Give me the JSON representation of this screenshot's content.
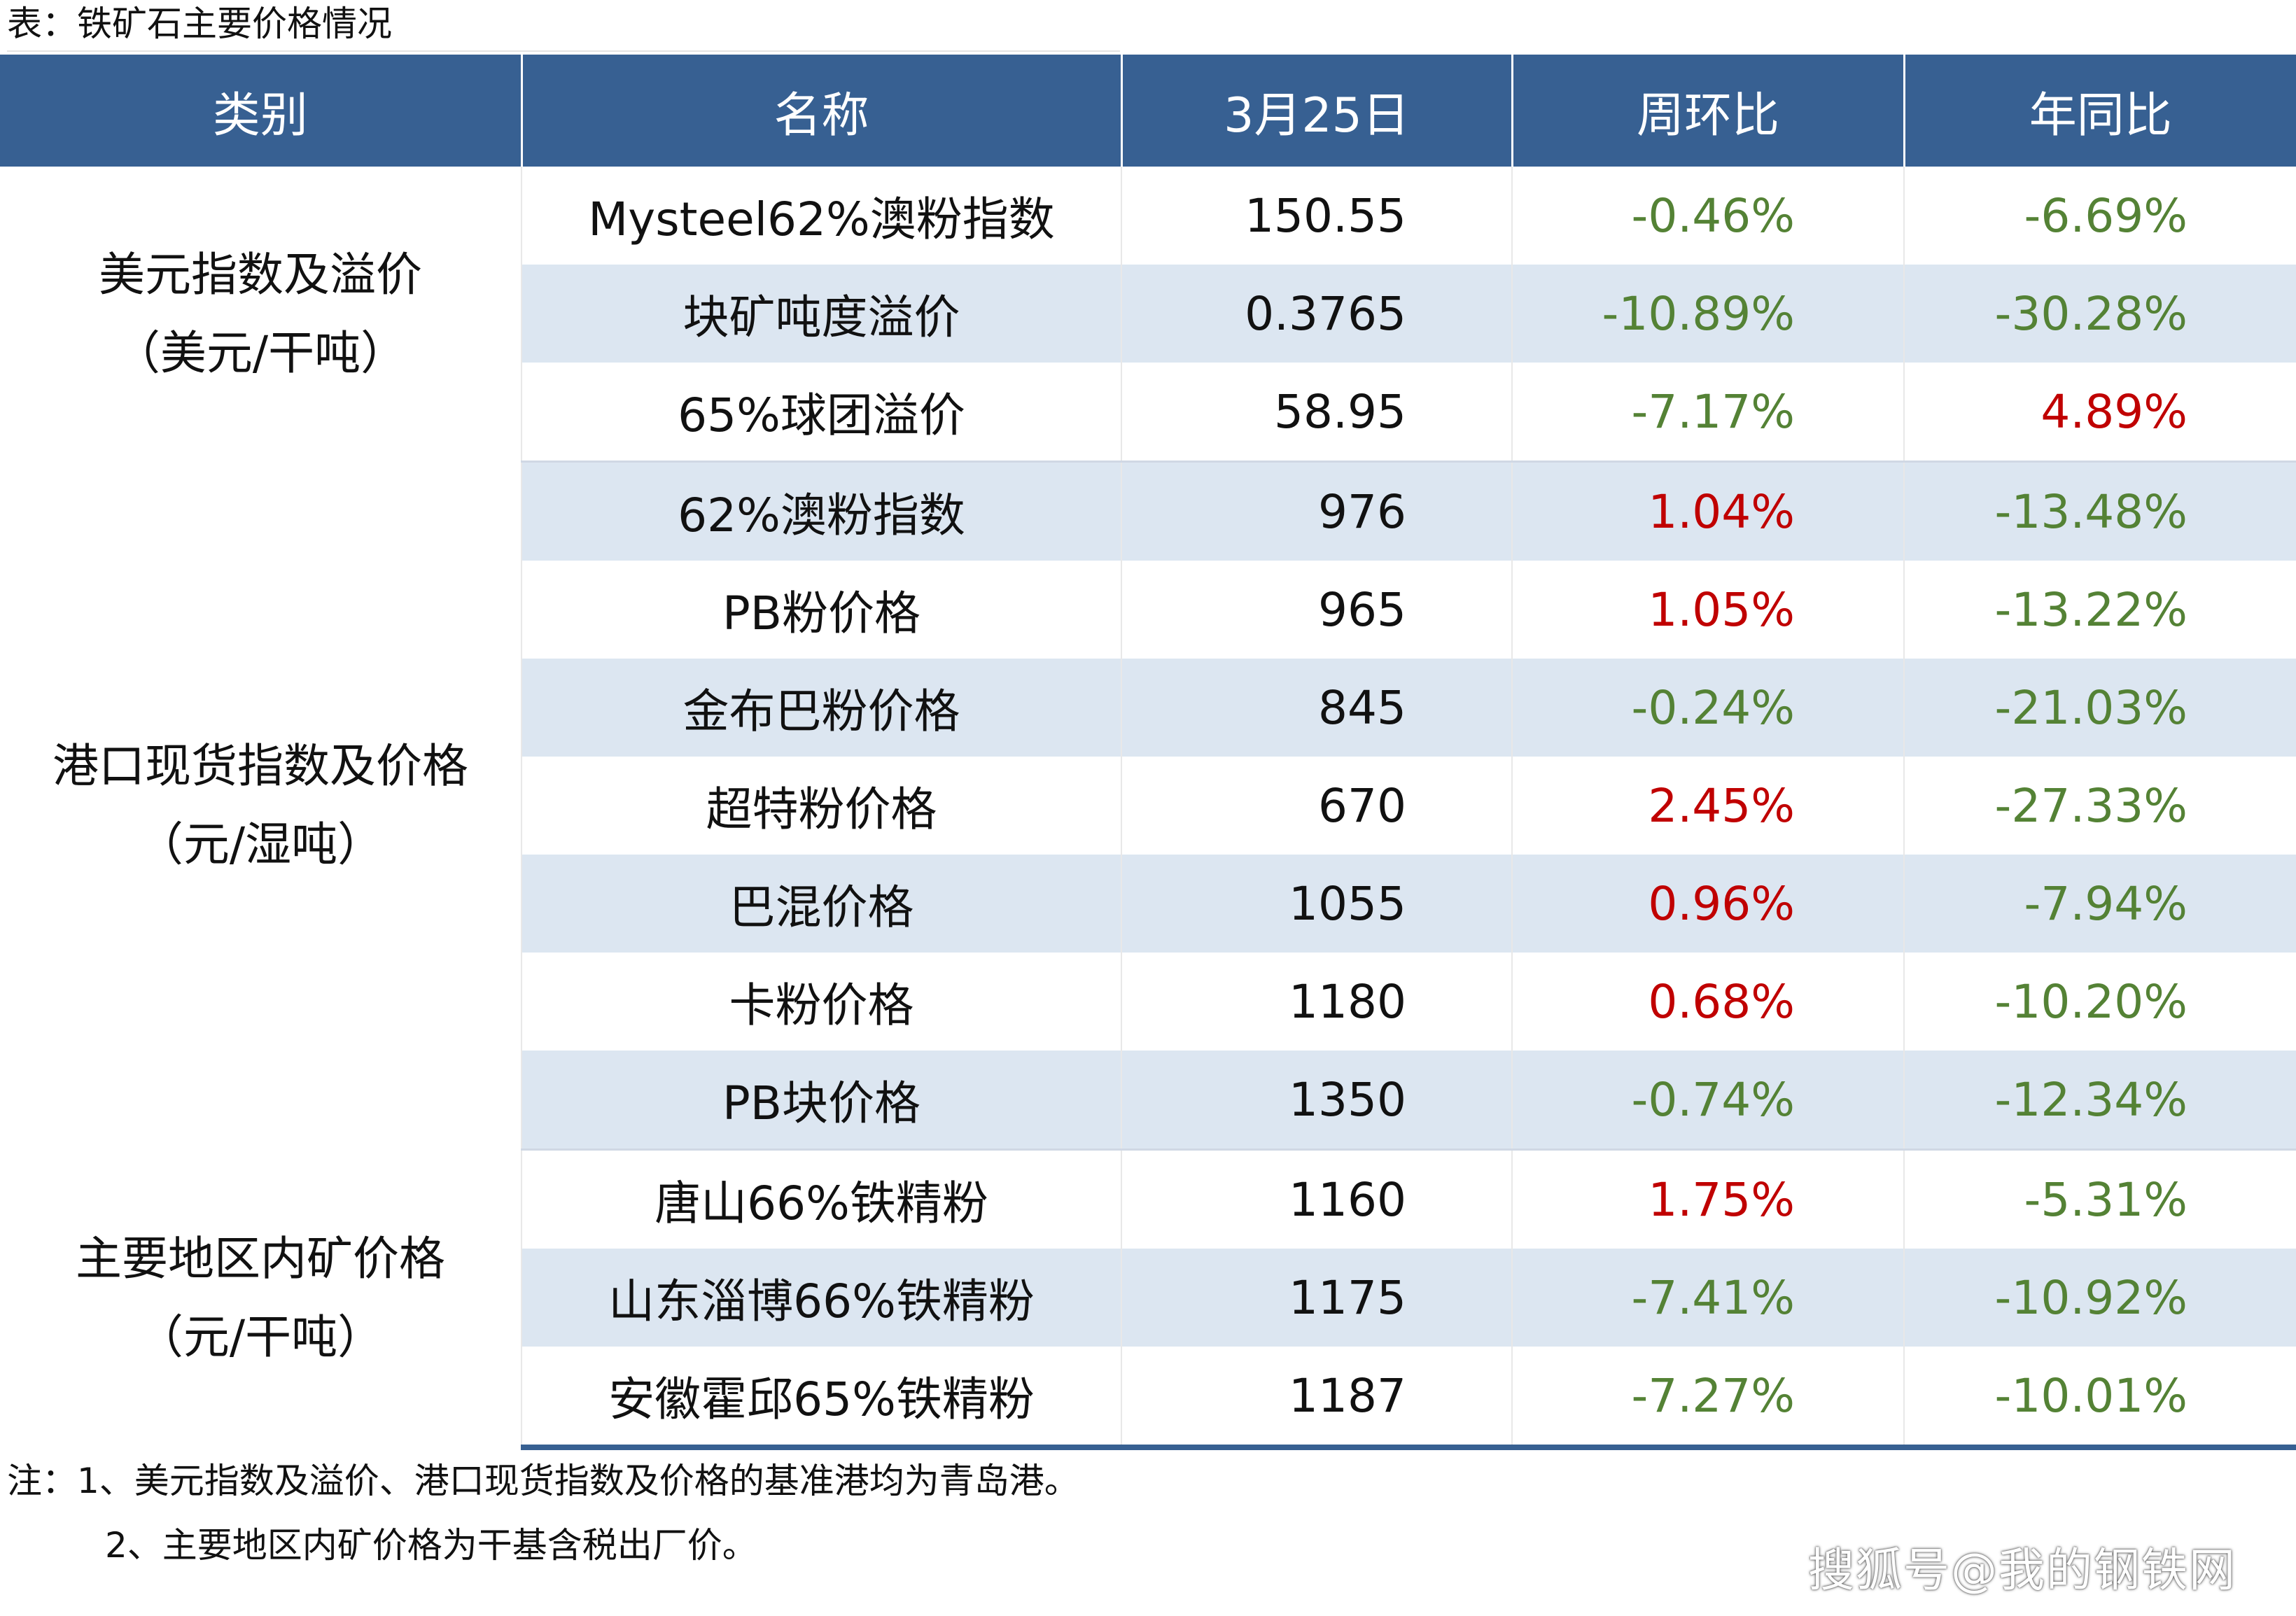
{
  "caption": "表：铁矿石主要价格情况",
  "headers": [
    "类别",
    "名称",
    "3月25日",
    "周环比",
    "年同比"
  ],
  "groups": [
    {
      "category_line1": "美元指数及溢价",
      "category_line2": "（美元/干吨）",
      "rows": [
        {
          "name": "Mysteel62%澳粉指数",
          "value": "150.55",
          "wow": "-0.46%",
          "yoy": "-6.69%"
        },
        {
          "name": "块矿吨度溢价",
          "value": "0.3765",
          "wow": "-10.89%",
          "yoy": "-30.28%"
        },
        {
          "name": "65%球团溢价",
          "value": "58.95",
          "wow": "-7.17%",
          "yoy": "4.89%"
        }
      ]
    },
    {
      "category_line1": "港口现货指数及价格",
      "category_line2": "（元/湿吨）",
      "rows": [
        {
          "name": "62%澳粉指数",
          "value": "976",
          "wow": "1.04%",
          "yoy": "-13.48%"
        },
        {
          "name": "PB粉价格",
          "value": "965",
          "wow": "1.05%",
          "yoy": "-13.22%"
        },
        {
          "name": "金布巴粉价格",
          "value": "845",
          "wow": "-0.24%",
          "yoy": "-21.03%"
        },
        {
          "name": "超特粉价格",
          "value": "670",
          "wow": "2.45%",
          "yoy": "-27.33%"
        },
        {
          "name": "巴混价格",
          "value": "1055",
          "wow": "0.96%",
          "yoy": "-7.94%"
        },
        {
          "name": "卡粉价格",
          "value": "1180",
          "wow": "0.68%",
          "yoy": "-10.20%"
        },
        {
          "name": "PB块价格",
          "value": "1350",
          "wow": "-0.74%",
          "yoy": "-12.34%"
        }
      ]
    },
    {
      "category_line1": "主要地区内矿价格",
      "category_line2": "（元/干吨）",
      "rows": [
        {
          "name": "唐山66%铁精粉",
          "value": "1160",
          "wow": "1.75%",
          "yoy": "-5.31%"
        },
        {
          "name": "山东淄博66%铁精粉",
          "value": "1175",
          "wow": "-7.41%",
          "yoy": "-10.92%"
        },
        {
          "name": "安徽霍邱65%铁精粉",
          "value": "1187",
          "wow": "-7.27%",
          "yoy": "-10.01%"
        }
      ]
    }
  ],
  "notes": [
    "注：1、美元指数及溢价、港口现货指数及价格的基准港均为青岛港。",
    "2、主要地区内矿价格为干基含税出厂价。"
  ],
  "watermark": "搜狐号@我的钢铁网",
  "colors": {
    "header_bg": "#376092",
    "stripe_bg": "#dce6f1",
    "negative": "#548235",
    "positive": "#c00000"
  }
}
